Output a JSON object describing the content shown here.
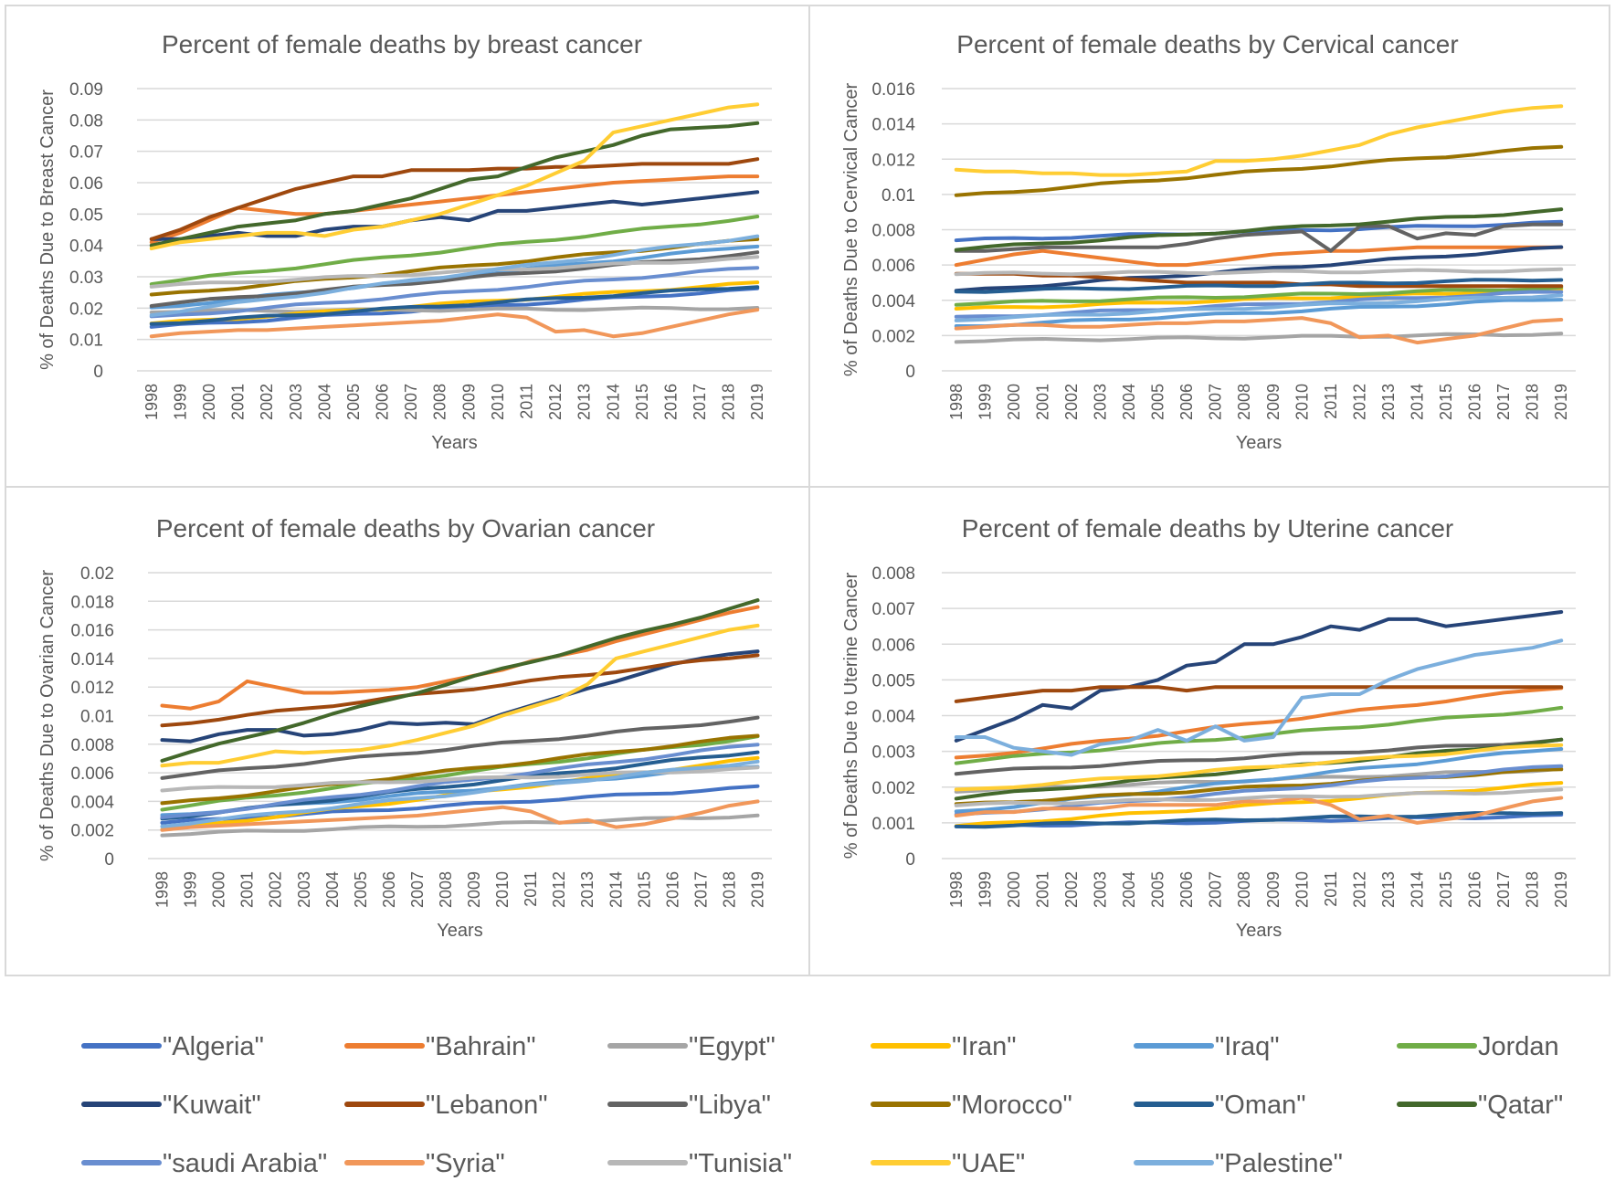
{
  "years": [
    "1998",
    "1999",
    "2000",
    "2001",
    "2002",
    "2003",
    "2004",
    "2005",
    "2006",
    "2007",
    "2008",
    "2009",
    "2010",
    "2011",
    "2012",
    "2013",
    "2014",
    "2015",
    "2016",
    "2017",
    "2018",
    "2019"
  ],
  "legend": [
    {
      "name": "\"Algeria\"",
      "color": "#4472C4"
    },
    {
      "name": "\"Bahrain\"",
      "color": "#ED7D31"
    },
    {
      "name": "\"Egypt\"",
      "color": "#A5A5A5"
    },
    {
      "name": "\"Iran\"",
      "color": "#FFC000"
    },
    {
      "name": "\"Iraq\"",
      "color": "#5B9BD5"
    },
    {
      "name": "Jordan",
      "color": "#70AD47"
    },
    {
      "name": "\"Kuwait\"",
      "color": "#264478"
    },
    {
      "name": "\"Lebanon\"",
      "color": "#9E480E"
    },
    {
      "name": "\"Libya\"",
      "color": "#636363"
    },
    {
      "name": "\"Morocco\"",
      "color": "#997300"
    },
    {
      "name": "\"Oman\"",
      "color": "#255E91"
    },
    {
      "name": "\"Qatar\"",
      "color": "#43682B"
    },
    {
      "name": "\"saudi Arabia\"",
      "color": "#698ED0"
    },
    {
      "name": "\"Syria\"",
      "color": "#F1975A"
    },
    {
      "name": "\"Tunisia\"",
      "color": "#B7B7B7"
    },
    {
      "name": "\"UAE\"",
      "color": "#FFCD33"
    },
    {
      "name": "\"Palestine\"",
      "color": "#7CAFDD"
    }
  ],
  "chart_data": [
    {
      "type": "line",
      "title": "Percent of female deaths by breast cancer",
      "xlabel": "Years",
      "ylabel": "% of  Deaths Due to Breast Cancer",
      "ylim": [
        0,
        0.09
      ],
      "yticks": [
        "0",
        "0.01",
        "0.02",
        "0.03",
        "0.04",
        "0.05",
        "0.06",
        "0.07",
        "0.08",
        "0.09"
      ],
      "series": [
        {
          "name": "\"Algeria\"",
          "start": 0.014,
          "end": 0.026
        },
        {
          "name": "\"Bahrain\"",
          "start": 0.041,
          "end": 0.062,
          "points": [
            0.041,
            0.044,
            0.048,
            0.052,
            0.051,
            0.05,
            0.05,
            0.051,
            0.052,
            0.053,
            0.054,
            0.055,
            0.056,
            0.057,
            0.058,
            0.059,
            0.06,
            0.0605,
            0.061,
            0.0615,
            0.062,
            0.062
          ]
        },
        {
          "name": "\"Egypt\"",
          "start": 0.019,
          "end": 0.02
        },
        {
          "name": "\"Iran\"",
          "start": 0.015,
          "end": 0.028
        },
        {
          "name": "\"Iraq\"",
          "start": 0.02,
          "end": 0.04
        },
        {
          "name": "Jordan",
          "start": 0.028,
          "end": 0.049
        },
        {
          "name": "\"Kuwait\"",
          "start": 0.042,
          "end": 0.057,
          "points": [
            0.042,
            0.042,
            0.043,
            0.044,
            0.043,
            0.043,
            0.045,
            0.046,
            0.046,
            0.048,
            0.049,
            0.048,
            0.051,
            0.051,
            0.052,
            0.053,
            0.054,
            0.053,
            0.054,
            0.055,
            0.056,
            0.057
          ]
        },
        {
          "name": "\"Lebanon\"",
          "start": 0.042,
          "end": 0.0675,
          "points": [
            0.042,
            0.045,
            0.049,
            0.052,
            0.055,
            0.058,
            0.06,
            0.062,
            0.062,
            0.064,
            0.064,
            0.064,
            0.0645,
            0.0645,
            0.065,
            0.065,
            0.0655,
            0.066,
            0.066,
            0.066,
            0.066,
            0.0675
          ]
        },
        {
          "name": "\"Libya\"",
          "start": 0.021,
          "end": 0.0375
        },
        {
          "name": "\"Morocco\"",
          "start": 0.024,
          "end": 0.042
        },
        {
          "name": "\"Oman\"",
          "start": 0.015,
          "end": 0.027
        },
        {
          "name": "\"Qatar\"",
          "start": 0.04,
          "end": 0.079,
          "points": [
            0.04,
            0.042,
            0.044,
            0.046,
            0.047,
            0.048,
            0.05,
            0.051,
            0.053,
            0.055,
            0.058,
            0.061,
            0.062,
            0.065,
            0.068,
            0.07,
            0.072,
            0.075,
            0.077,
            0.0775,
            0.078,
            0.079
          ]
        },
        {
          "name": "\"saudi Arabia\"",
          "start": 0.017,
          "end": 0.033
        },
        {
          "name": "\"Syria\"",
          "start": 0.011,
          "end": 0.0195,
          "points": [
            0.011,
            0.012,
            0.0125,
            0.013,
            0.013,
            0.0135,
            0.014,
            0.0145,
            0.015,
            0.0155,
            0.016,
            0.017,
            0.018,
            0.017,
            0.0125,
            0.013,
            0.011,
            0.012,
            0.014,
            0.016,
            0.018,
            0.0195
          ]
        },
        {
          "name": "\"Tunisia\"",
          "start": 0.027,
          "end": 0.036
        },
        {
          "name": "\"UAE\"",
          "start": 0.039,
          "end": 0.085,
          "points": [
            0.039,
            0.041,
            0.042,
            0.043,
            0.044,
            0.044,
            0.043,
            0.045,
            0.046,
            0.048,
            0.05,
            0.053,
            0.056,
            0.059,
            0.063,
            0.067,
            0.076,
            0.078,
            0.08,
            0.082,
            0.084,
            0.085
          ]
        },
        {
          "name": "\"Palestine\"",
          "start": 0.018,
          "end": 0.043
        }
      ]
    },
    {
      "type": "line",
      "title": "Percent of female deaths by Cervical cancer",
      "xlabel": "Years",
      "ylabel": "% of  Deaths Due to Cervical Cancer",
      "ylim": [
        0,
        0.016
      ],
      "yticks": [
        "0",
        "0.002",
        "0.004",
        "0.006",
        "0.008",
        "0.01",
        "0.012",
        "0.014",
        "0.016"
      ],
      "series": [
        {
          "name": "\"Algeria\"",
          "start": 0.0074,
          "end": 0.0084
        },
        {
          "name": "\"Bahrain\"",
          "start": 0.006,
          "end": 0.007,
          "points": [
            0.006,
            0.0063,
            0.0066,
            0.0068,
            0.0066,
            0.0064,
            0.0062,
            0.006,
            0.006,
            0.0062,
            0.0064,
            0.0066,
            0.0067,
            0.0068,
            0.0068,
            0.0069,
            0.007,
            0.007,
            0.007,
            0.007,
            0.007,
            0.007
          ]
        },
        {
          "name": "\"Egypt\"",
          "start": 0.0017,
          "end": 0.0021
        },
        {
          "name": "\"Iran\"",
          "start": 0.0035,
          "end": 0.0046
        },
        {
          "name": "\"Iraq\"",
          "start": 0.0025,
          "end": 0.0041
        },
        {
          "name": "Jordan",
          "start": 0.0038,
          "end": 0.0047
        },
        {
          "name": "\"Kuwait\"",
          "start": 0.0045,
          "end": 0.007
        },
        {
          "name": "\"Lebanon\"",
          "start": 0.0055,
          "end": 0.0048,
          "points": [
            0.0055,
            0.0055,
            0.0055,
            0.0054,
            0.0054,
            0.0053,
            0.0052,
            0.0051,
            0.005,
            0.005,
            0.005,
            0.005,
            0.0049,
            0.0049,
            0.0048,
            0.0048,
            0.0048,
            0.0048,
            0.0048,
            0.0048,
            0.0048,
            0.0048
          ]
        },
        {
          "name": "\"Libya\"",
          "start": 0.0068,
          "end": 0.0083,
          "points": [
            0.0068,
            0.0068,
            0.0069,
            0.007,
            0.007,
            0.007,
            0.007,
            0.007,
            0.0072,
            0.0075,
            0.0077,
            0.0078,
            0.0079,
            0.0068,
            0.0082,
            0.0082,
            0.0075,
            0.0078,
            0.0077,
            0.0082,
            0.0083,
            0.0083
          ]
        },
        {
          "name": "\"Morocco\"",
          "start": 0.0099,
          "end": 0.0127
        },
        {
          "name": "\"Oman\"",
          "start": 0.0045,
          "end": 0.0052
        },
        {
          "name": "\"Qatar\"",
          "start": 0.0069,
          "end": 0.0091
        },
        {
          "name": "\"saudi Arabia\"",
          "start": 0.003,
          "end": 0.0045
        },
        {
          "name": "\"Syria\"",
          "start": 0.0024,
          "end": 0.0029,
          "points": [
            0.0024,
            0.0025,
            0.0026,
            0.0026,
            0.0025,
            0.0025,
            0.0026,
            0.0027,
            0.0027,
            0.0028,
            0.0028,
            0.0029,
            0.003,
            0.0027,
            0.0019,
            0.002,
            0.0016,
            0.0018,
            0.002,
            0.0024,
            0.0028,
            0.0029
          ]
        },
        {
          "name": "\"Tunisia\"",
          "start": 0.0055,
          "end": 0.0057
        },
        {
          "name": "\"UAE\"",
          "start": 0.0114,
          "end": 0.015,
          "points": [
            0.0114,
            0.0113,
            0.0113,
            0.0112,
            0.0112,
            0.0111,
            0.0111,
            0.0112,
            0.0113,
            0.0119,
            0.0119,
            0.012,
            0.0122,
            0.0125,
            0.0128,
            0.0134,
            0.0138,
            0.0141,
            0.0144,
            0.0147,
            0.0149,
            0.015
          ]
        },
        {
          "name": "\"Palestine\"",
          "start": 0.0029,
          "end": 0.0043
        }
      ]
    },
    {
      "type": "line",
      "title": "Percent of female deaths by Ovarian cancer",
      "xlabel": "Years",
      "ylabel": "% of  Deaths Due to Ovarian Cancer",
      "ylim": [
        0,
        0.02
      ],
      "yticks": [
        "0",
        "0.002",
        "0.004",
        "0.006",
        "0.008",
        "0.01",
        "0.012",
        "0.014",
        "0.016",
        "0.018",
        "0.02"
      ],
      "series": [
        {
          "name": "\"Algeria\"",
          "start": 0.0025,
          "end": 0.005
        },
        {
          "name": "\"Bahrain\"",
          "start": 0.0107,
          "end": 0.0176,
          "points": [
            0.0107,
            0.0105,
            0.011,
            0.0124,
            0.012,
            0.0116,
            0.0116,
            0.0117,
            0.0118,
            0.012,
            0.0124,
            0.0128,
            0.0132,
            0.0138,
            0.0142,
            0.0146,
            0.0152,
            0.0157,
            0.0162,
            0.0167,
            0.0172,
            0.0176
          ]
        },
        {
          "name": "\"Egypt\"",
          "start": 0.0017,
          "end": 0.003
        },
        {
          "name": "\"Iran\"",
          "start": 0.002,
          "end": 0.007
        },
        {
          "name": "\"Iraq\"",
          "start": 0.003,
          "end": 0.0065
        },
        {
          "name": "Jordan",
          "start": 0.0035,
          "end": 0.0085
        },
        {
          "name": "\"Kuwait\"",
          "start": 0.0083,
          "end": 0.0145,
          "points": [
            0.0083,
            0.0082,
            0.0087,
            0.009,
            0.009,
            0.0086,
            0.0087,
            0.009,
            0.0095,
            0.0094,
            0.0095,
            0.0094,
            0.0101,
            0.0107,
            0.0113,
            0.0119,
            0.0124,
            0.013,
            0.0136,
            0.014,
            0.0143,
            0.0145
          ]
        },
        {
          "name": "\"Lebanon\"",
          "start": 0.0093,
          "end": 0.0143
        },
        {
          "name": "\"Libya\"",
          "start": 0.0057,
          "end": 0.0098
        },
        {
          "name": "\"Morocco\"",
          "start": 0.0038,
          "end": 0.0086
        },
        {
          "name": "\"Oman\"",
          "start": 0.0028,
          "end": 0.0075
        },
        {
          "name": "\"Qatar\"",
          "start": 0.0069,
          "end": 0.018
        },
        {
          "name": "\"saudi Arabia\"",
          "start": 0.0028,
          "end": 0.008
        },
        {
          "name": "\"Syria\"",
          "start": 0.002,
          "end": 0.004,
          "points": [
            0.002,
            0.0022,
            0.0023,
            0.0024,
            0.0025,
            0.0026,
            0.0027,
            0.0028,
            0.0029,
            0.003,
            0.0032,
            0.0034,
            0.0036,
            0.0033,
            0.0025,
            0.0027,
            0.0022,
            0.0024,
            0.0028,
            0.0032,
            0.0037,
            0.004
          ]
        },
        {
          "name": "\"Tunisia\"",
          "start": 0.0048,
          "end": 0.0063
        },
        {
          "name": "\"UAE\"",
          "start": 0.0065,
          "end": 0.0163,
          "points": [
            0.0065,
            0.0067,
            0.0067,
            0.0071,
            0.0075,
            0.0074,
            0.0075,
            0.0076,
            0.0079,
            0.0083,
            0.0088,
            0.0093,
            0.01,
            0.0106,
            0.0112,
            0.0122,
            0.014,
            0.0145,
            0.015,
            0.0155,
            0.016,
            0.0163
          ]
        },
        {
          "name": "\"Palestine\"",
          "start": 0.0023,
          "end": 0.0068
        }
      ]
    },
    {
      "type": "line",
      "title": "Percent of female deaths by Uterine cancer",
      "xlabel": "Years",
      "ylabel": "% of  Deaths Due to Uterine Cancer",
      "ylim": [
        0,
        0.008
      ],
      "yticks": [
        "0",
        "0.001",
        "0.002",
        "0.003",
        "0.004",
        "0.005",
        "0.006",
        "0.007",
        "0.008"
      ],
      "series": [
        {
          "name": "\"Algeria\"",
          "start": 0.0009,
          "end": 0.0012
        },
        {
          "name": "\"Bahrain\"",
          "start": 0.0028,
          "end": 0.0048
        },
        {
          "name": "\"Egypt\"",
          "start": 0.0019,
          "end": 0.0025
        },
        {
          "name": "\"Iran\"",
          "start": 0.0009,
          "end": 0.0021
        },
        {
          "name": "\"Iraq\"",
          "start": 0.0013,
          "end": 0.0031
        },
        {
          "name": "Jordan",
          "start": 0.0027,
          "end": 0.0042
        },
        {
          "name": "\"Kuwait\"",
          "start": 0.0033,
          "end": 0.0069,
          "points": [
            0.0033,
            0.0036,
            0.0039,
            0.0043,
            0.0042,
            0.0047,
            0.0048,
            0.005,
            0.0054,
            0.0055,
            0.006,
            0.006,
            0.0062,
            0.0065,
            0.0064,
            0.0067,
            0.0067,
            0.0065,
            0.0066,
            0.0067,
            0.0068,
            0.0069
          ]
        },
        {
          "name": "\"Lebanon\"",
          "start": 0.0044,
          "end": 0.0048,
          "points": [
            0.0044,
            0.0045,
            0.0046,
            0.0047,
            0.0047,
            0.0048,
            0.0048,
            0.0048,
            0.0047,
            0.0048,
            0.0048,
            0.0048,
            0.0048,
            0.0048,
            0.0048,
            0.0048,
            0.0048,
            0.0048,
            0.0048,
            0.0048,
            0.0048,
            0.0048
          ]
        },
        {
          "name": "\"Libya\"",
          "start": 0.0024,
          "end": 0.0033
        },
        {
          "name": "\"Morocco\"",
          "start": 0.0015,
          "end": 0.0025
        },
        {
          "name": "\"Oman\"",
          "start": 0.0009,
          "end": 0.0013
        },
        {
          "name": "\"Qatar\"",
          "start": 0.0017,
          "end": 0.0033
        },
        {
          "name": "\"saudi Arabia\"",
          "start": 0.0012,
          "end": 0.0026
        },
        {
          "name": "\"Syria\"",
          "start": 0.0012,
          "end": 0.0017,
          "points": [
            0.0012,
            0.0013,
            0.0013,
            0.0014,
            0.0014,
            0.0014,
            0.0015,
            0.0015,
            0.0015,
            0.0015,
            0.0016,
            0.0016,
            0.0017,
            0.0015,
            0.0011,
            0.0012,
            0.001,
            0.0011,
            0.0012,
            0.0014,
            0.0016,
            0.0017
          ]
        },
        {
          "name": "\"Tunisia\"",
          "start": 0.0015,
          "end": 0.0019
        },
        {
          "name": "\"UAE\"",
          "start": 0.0019,
          "end": 0.0032
        },
        {
          "name": "\"Palestine\"",
          "start": 0.0034,
          "end": 0.0061,
          "points": [
            0.0034,
            0.0034,
            0.0031,
            0.003,
            0.0029,
            0.0032,
            0.0033,
            0.0036,
            0.0033,
            0.0037,
            0.0033,
            0.0034,
            0.0045,
            0.0046,
            0.0046,
            0.005,
            0.0053,
            0.0055,
            0.0057,
            0.0058,
            0.0059,
            0.0061
          ]
        }
      ]
    }
  ]
}
